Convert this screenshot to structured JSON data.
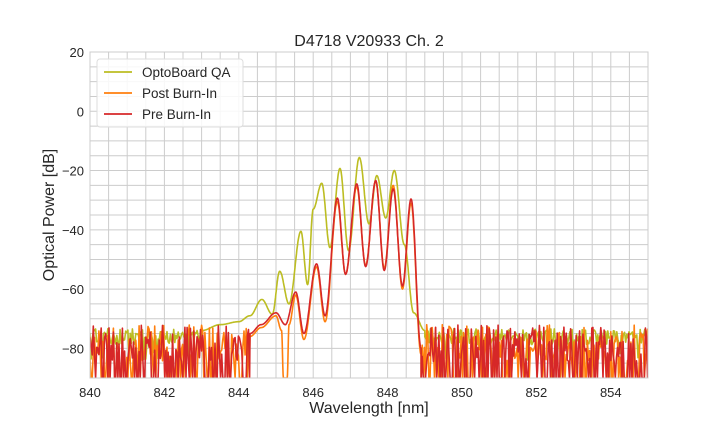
{
  "chart_data": {
    "type": "line",
    "title": "D4718 V20933 Ch. 2",
    "xlabel": "Wavelength [nm]",
    "ylabel": "Optical Power [dB]",
    "xlim": [
      840,
      855
    ],
    "ylim": [
      -90,
      20
    ],
    "xticks": [
      840,
      842,
      844,
      846,
      848,
      850,
      852,
      854
    ],
    "yticks": [
      -80,
      -60,
      -40,
      -20,
      0,
      20
    ],
    "xtick_labels": [
      "840",
      "842",
      "844",
      "846",
      "848",
      "850",
      "852",
      "854"
    ],
    "ytick_labels": [
      "−80",
      "−60",
      "−40",
      "−20",
      "0",
      "20"
    ],
    "grid": true,
    "minor_grid_step": {
      "x": 0.5,
      "y": 5
    },
    "legend_placement": "top-left",
    "series": [
      {
        "name": "OptoBoard QA",
        "color": "#bcbd22",
        "noise_range_db": [
          -81,
          -72
        ],
        "noise_regions": [
          [
            840,
            843.0
          ],
          [
            849.0,
            855
          ]
        ],
        "points": [
          [
            843.0,
            -74
          ],
          [
            843.5,
            -72
          ],
          [
            844.0,
            -71
          ],
          [
            844.3,
            -69
          ],
          [
            844.62,
            -63.5
          ],
          [
            844.9,
            -68.5
          ],
          [
            845.1,
            -54
          ],
          [
            845.35,
            -65
          ],
          [
            845.67,
            -40.5
          ],
          [
            845.85,
            -58.5
          ],
          [
            846.0,
            -33
          ],
          [
            846.23,
            -24.3
          ],
          [
            846.45,
            -46
          ],
          [
            846.72,
            -19.3
          ],
          [
            846.95,
            -47
          ],
          [
            847.24,
            -15.6
          ],
          [
            847.5,
            -38
          ],
          [
            847.71,
            -21.7
          ],
          [
            847.95,
            -36
          ],
          [
            848.18,
            -20
          ],
          [
            848.45,
            -45
          ],
          [
            848.7,
            -68
          ],
          [
            849.0,
            -74
          ]
        ]
      },
      {
        "name": "Post Burn-In",
        "color": "#ff7f0e",
        "noise_range_db": [
          -90,
          -72
        ],
        "noise_regions": [
          [
            840,
            844.3
          ],
          [
            848.9,
            855
          ]
        ],
        "points": [
          [
            844.3,
            -76
          ],
          [
            844.6,
            -73
          ],
          [
            845.0,
            -69
          ],
          [
            845.15,
            -74
          ],
          [
            845.2,
            -90
          ],
          [
            845.3,
            -90
          ],
          [
            845.35,
            -72
          ],
          [
            845.53,
            -62
          ],
          [
            845.75,
            -77
          ],
          [
            846.09,
            -52.5
          ],
          [
            846.32,
            -71
          ],
          [
            846.65,
            -30.5
          ],
          [
            846.87,
            -55
          ],
          [
            847.17,
            -25.5
          ],
          [
            847.41,
            -52
          ],
          [
            847.68,
            -23.5
          ],
          [
            847.91,
            -53
          ],
          [
            848.15,
            -25
          ],
          [
            848.4,
            -60
          ],
          [
            848.63,
            -31
          ],
          [
            848.9,
            -82
          ]
        ]
      },
      {
        "name": "Pre Burn-In",
        "color": "#d62728",
        "noise_range_db": [
          -90,
          -72
        ],
        "noise_regions": [
          [
            840,
            844.3
          ],
          [
            848.9,
            855
          ]
        ],
        "points": [
          [
            844.3,
            -75
          ],
          [
            844.6,
            -72
          ],
          [
            845.0,
            -68
          ],
          [
            845.25,
            -72
          ],
          [
            845.53,
            -61
          ],
          [
            845.75,
            -75
          ],
          [
            846.09,
            -51.5
          ],
          [
            846.32,
            -69
          ],
          [
            846.65,
            -29.3
          ],
          [
            846.87,
            -55
          ],
          [
            847.17,
            -24.5
          ],
          [
            847.41,
            -52.4
          ],
          [
            847.68,
            -23.4
          ],
          [
            847.91,
            -53.7
          ],
          [
            848.15,
            -26.2
          ],
          [
            848.4,
            -59
          ],
          [
            848.63,
            -29.6
          ],
          [
            848.9,
            -80
          ]
        ]
      }
    ]
  }
}
